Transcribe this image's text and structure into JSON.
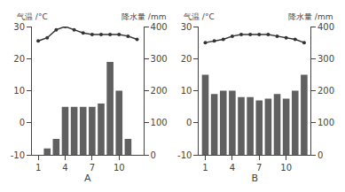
{
  "chart_data": [
    {
      "type": "bar",
      "xlabel": "A",
      "ylabel": "气温 /°C",
      "y2label": "降水量 /mm",
      "x": [
        1,
        2,
        3,
        4,
        5,
        6,
        7,
        8,
        9,
        10,
        11,
        12
      ],
      "xlim": [
        0.3,
        12.7
      ],
      "xticks": [
        1,
        4,
        7,
        10
      ],
      "ylim": [
        -10,
        30
      ],
      "yticks": [
        -10,
        0,
        10,
        20,
        30
      ],
      "y2lim": [
        0,
        400
      ],
      "y2ticks": [
        0,
        100,
        200,
        300,
        400
      ],
      "grid": false,
      "series": [
        {
          "type": "bar",
          "axis": "y2",
          "color": "#606060",
          "values": [
            0,
            20,
            50,
            150,
            150,
            150,
            150,
            160,
            290,
            200,
            50,
            0
          ]
        },
        {
          "type": "line",
          "color": "#333333",
          "marker": "circle",
          "line_style": "solid",
          "values": [
            25.5,
            26.5,
            29,
            30,
            29,
            28,
            27.5,
            27.5,
            27.5,
            27.5,
            27,
            26
          ]
        }
      ]
    },
    {
      "type": "bar",
      "xlabel": "B",
      "ylabel": "气温 /°C",
      "y2label": "降水量 /mm",
      "x": [
        1,
        2,
        3,
        4,
        5,
        6,
        7,
        8,
        9,
        10,
        11,
        12
      ],
      "xlim": [
        0.3,
        12.7
      ],
      "xticks": [
        1,
        4,
        7,
        10
      ],
      "ylim": [
        -10,
        30
      ],
      "yticks": [
        -10,
        0,
        10,
        20,
        30
      ],
      "y2lim": [
        0,
        400
      ],
      "y2ticks": [
        0,
        100,
        200,
        300,
        400
      ],
      "grid": false,
      "series": [
        {
          "type": "bar",
          "axis": "y2",
          "color": "#606060",
          "values": [
            250,
            190,
            200,
            200,
            180,
            180,
            170,
            175,
            190,
            175,
            200,
            250
          ]
        },
        {
          "type": "line",
          "color": "#333333",
          "marker": "circle",
          "line_style": "solid",
          "values": [
            25,
            25.5,
            26,
            27,
            27.5,
            27.5,
            27.5,
            27.5,
            27,
            26.5,
            26,
            25
          ]
        }
      ]
    }
  ]
}
